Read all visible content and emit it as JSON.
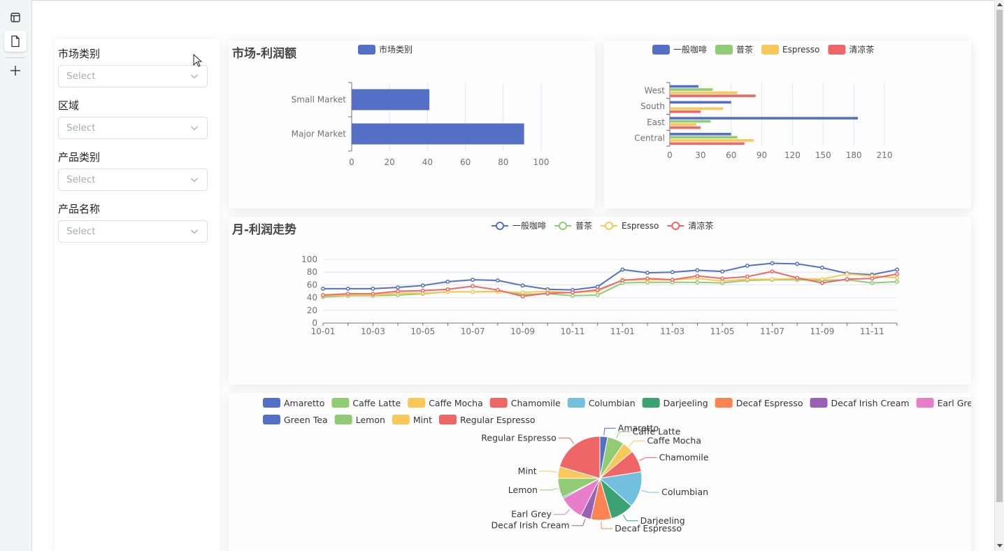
{
  "filters": [
    {
      "label": "市场类别",
      "placeholder": "Select"
    },
    {
      "label": "区域",
      "placeholder": "Select"
    },
    {
      "label": "产品类别",
      "placeholder": "Select"
    },
    {
      "label": "产品名称",
      "placeholder": "Select"
    }
  ],
  "colors": {
    "blue": "#5470c6",
    "green": "#91cc75",
    "yellow": "#fac858",
    "red": "#ee6666",
    "cyan": "#73c0de",
    "teal": "#3ba272",
    "orange": "#fc8452",
    "purple": "#9a60b4",
    "pink": "#ea7ccc"
  },
  "chart_data": [
    {
      "id": "market-profit",
      "type": "bar",
      "orientation": "horizontal",
      "title": "市场-利润额",
      "legend": [
        "市场类别"
      ],
      "legend_position": "top",
      "categories": [
        "Major Market",
        "Small Market"
      ],
      "series": [
        {
          "name": "市场类别",
          "values": [
            91,
            41
          ]
        }
      ],
      "xlim": [
        0,
        100
      ],
      "xticks": [
        0,
        20,
        40,
        60,
        80,
        100
      ],
      "grid": true
    },
    {
      "id": "region-profit",
      "type": "bar",
      "orientation": "horizontal",
      "title": "",
      "legend_position": "top",
      "categories": [
        "Central",
        "East",
        "South",
        "West"
      ],
      "series": [
        {
          "name": "一般咖啡",
          "values": [
            60,
            184,
            60,
            28
          ]
        },
        {
          "name": "普茶",
          "values": [
            66,
            40,
            0,
            42
          ]
        },
        {
          "name": "Espresso",
          "values": [
            82,
            26,
            52,
            66
          ]
        },
        {
          "name": "清凉茶",
          "values": [
            73,
            30,
            30,
            84
          ]
        }
      ],
      "xlim": [
        0,
        210
      ],
      "xticks": [
        0,
        30,
        60,
        90,
        120,
        150,
        180,
        210
      ],
      "grid": true
    },
    {
      "id": "monthly-profit-trend",
      "type": "line",
      "title": "月-利润走势",
      "legend_position": "top",
      "x": [
        "10-01",
        "10-02",
        "10-03",
        "10-04",
        "10-05",
        "10-06",
        "10-07",
        "10-08",
        "10-09",
        "10-10",
        "10-11",
        "10-12",
        "11-01",
        "11-02",
        "11-03",
        "11-04",
        "11-05",
        "11-06",
        "11-07",
        "11-08",
        "11-09",
        "11-10",
        "11-11",
        "11-12"
      ],
      "xtick_labels": [
        "10-01",
        "10-03",
        "10-05",
        "10-07",
        "10-09",
        "10-11",
        "11-01",
        "11-03",
        "11-05",
        "11-07",
        "11-09",
        "11-11"
      ],
      "series": [
        {
          "name": "一般咖啡",
          "values": [
            54,
            54,
            54,
            56,
            59,
            65,
            68,
            67,
            59,
            53,
            52,
            57,
            84,
            79,
            80,
            83,
            81,
            90,
            94,
            93,
            87,
            78,
            76,
            84
          ]
        },
        {
          "name": "普茶",
          "values": [
            41,
            43,
            43,
            44,
            46,
            49,
            49,
            50,
            45,
            46,
            43,
            44,
            63,
            64,
            64,
            64,
            63,
            67,
            68,
            68,
            67,
            68,
            63,
            65
          ]
        },
        {
          "name": "Espresso",
          "values": [
            43,
            44,
            44,
            47,
            47,
            49,
            49,
            49,
            48,
            50,
            48,
            50,
            68,
            68,
            68,
            70,
            66,
            69,
            69,
            70,
            69,
            77,
            74,
            71
          ]
        },
        {
          "name": "清凉茶",
          "values": [
            44,
            46,
            46,
            50,
            51,
            53,
            58,
            52,
            42,
            47,
            48,
            52,
            67,
            70,
            68,
            74,
            70,
            73,
            81,
            71,
            63,
            69,
            70,
            77
          ]
        }
      ],
      "ylim": [
        0,
        100
      ],
      "yticks": [
        0,
        20,
        40,
        60,
        80,
        100
      ],
      "grid": true
    },
    {
      "id": "product-share",
      "type": "pie",
      "title": "",
      "legend_position": "top",
      "labels": [
        "Amaretto",
        "Caffe Latte",
        "Caffe Mocha",
        "Chamomile",
        "Columbian",
        "Darjeeling",
        "Decaf Espresso",
        "Decaf Irish Cream",
        "Earl Grey",
        "Green Tea",
        "Lemon",
        "Mint",
        "Regular Espresso"
      ],
      "values": [
        3.0,
        6.5,
        4.5,
        8.5,
        14.0,
        9.0,
        8.0,
        4.0,
        9.5,
        0.5,
        7.5,
        4.5,
        20.5
      ]
    }
  ]
}
